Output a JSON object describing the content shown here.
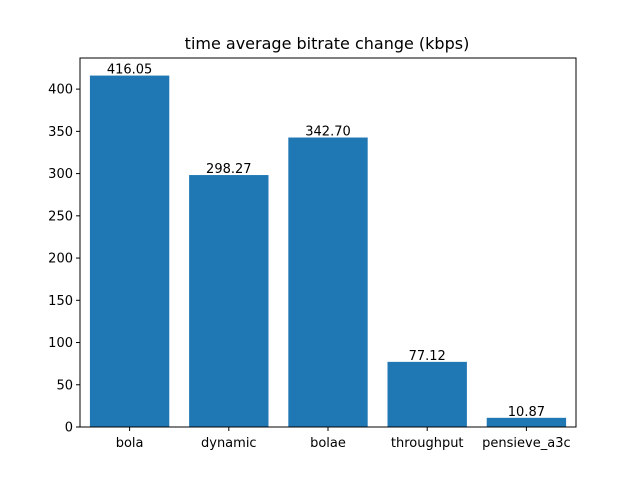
{
  "chart_data": {
    "type": "bar",
    "title": "time average bitrate change (kbps)",
    "xlabel": "",
    "ylabel": "",
    "categories": [
      "bola",
      "dynamic",
      "bolae",
      "throughput",
      "pensieve_a3c"
    ],
    "values": [
      416.05,
      298.27,
      342.7,
      77.12,
      10.87
    ],
    "value_labels": [
      "416.05",
      "298.27",
      "342.70",
      "77.12",
      "10.87"
    ],
    "ylim": [
      0,
      436.85
    ],
    "yticks": [
      0,
      50,
      100,
      150,
      200,
      250,
      300,
      350,
      400
    ],
    "bar_color": "#1f77b4",
    "grid": false,
    "legend": "none"
  }
}
